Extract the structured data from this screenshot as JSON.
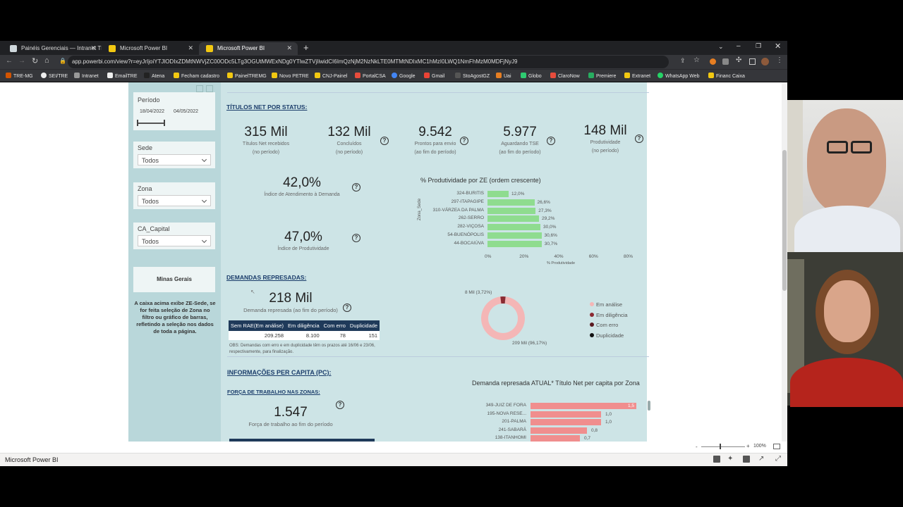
{
  "browser": {
    "tabs": [
      {
        "label": "Painéis Gerenciais — Intranet TRE",
        "active": false
      },
      {
        "label": "Microsoft Power BI",
        "active": false
      },
      {
        "label": "Microsoft Power BI",
        "active": true
      }
    ],
    "url": "app.powerbi.com/view?r=eyJrIjoiYTJlODIxZDMtNWVjZC00ODc5LTg3OGUtMWExNDg0YTlwZTVjIiwidCI6ImQzNjM2NzNkLTE0MTMtNDIxMC1hMzI0LWQ1NmFhMzM0MDFjNyJ9",
    "bookmarks": [
      "TRE-MG",
      "SEI/TRE",
      "Intranet",
      "EmailTRE",
      "Atena",
      "Fecham cadastro",
      "PainelTREMG",
      "Novo PETRE",
      "CNJ-Painel",
      "PortalCSA",
      "Google",
      "Gmail",
      "StoAgostGZ",
      "Uai",
      "Globo",
      "ClaroNow",
      "Premiere",
      "Extranet",
      "WhatsApp Web",
      "Financ Caixa"
    ]
  },
  "sidebar": {
    "periodo": {
      "label": "Período",
      "start": "18/04/2022",
      "end": "04/05/2022"
    },
    "sede": {
      "label": "Sede",
      "value": "Todos"
    },
    "zona": {
      "label": "Zona",
      "value": "Todos"
    },
    "ca_capital": {
      "label": "CA_Capital",
      "value": "Todos"
    },
    "region": "Minas Gerais",
    "note": "A caixa acima exibe ZE-Sede, se for feita seleção de Zona no filtro ou gráfico de barras, refletindo a seleção nos dados de toda a página."
  },
  "titulos": {
    "heading": "TÍTULOS NET POR STATUS:",
    "kpis": [
      {
        "value": "315 Mil",
        "label1": "Títulos Net recebidos",
        "label2": "(no período)"
      },
      {
        "value": "132 Mil",
        "label1": "Concluídos",
        "label2": "(no período)"
      },
      {
        "value": "9.542",
        "label1": "Prontos para envio",
        "label2": "(ao fim do período)"
      },
      {
        "value": "5.977",
        "label1": "Aguardando TSE",
        "label2": "(ao fim do período)"
      },
      {
        "value": "148 Mil",
        "label1": "Produtividade",
        "label2": "(no período)"
      }
    ],
    "atendimento": {
      "value": "42,0%",
      "label": "Índice de Atendimento à Demanda"
    },
    "produtividade": {
      "value": "47,0%",
      "label": "Índice de Produtividade"
    }
  },
  "demandas": {
    "heading": "DEMANDAS REPRESADAS:",
    "value": "218 Mil",
    "label": "Demanda represada (ao fim do período)",
    "table": {
      "headers": [
        "Sem RAE(Em análise)",
        "Em diligência",
        "Com erro",
        "Duplicidade"
      ],
      "row": [
        "209.258",
        "8.100",
        "78",
        "151"
      ]
    },
    "obs1": "OBS: Demandas com erro e em duplicidade têm os prazos até 16/06 e 23/06,",
    "obs2": "respectivamente, para finalização.",
    "donut_top_label": "8 Mil (3,72%)",
    "donut_bottom_label": "209 Mil (96,17%)",
    "legend": [
      {
        "label": "Em análise",
        "color": "#f4b6b6"
      },
      {
        "label": "Em diligência",
        "color": "#8b2a32"
      },
      {
        "label": "Com erro",
        "color": "#5a1a20"
      },
      {
        "label": "Duplicidade",
        "color": "#111111"
      }
    ]
  },
  "percapita": {
    "heading": "INFORMAÇÕES PER CAPITA (PC):",
    "forca_heading": "FORÇA DE TRABALHO NAS ZONAS:",
    "forca_value": "1.547",
    "forca_label": "Força de trabalho ao fim do período"
  },
  "chart_data": [
    {
      "type": "bar",
      "title": "% Produtividade por ZE (ordem crescente)",
      "ylabel": "Zona_Sede",
      "xlabel": "% Produtividade",
      "categories": [
        "324-BURITIS",
        "297-ITAPAGIPE",
        "310-VÁRZEA DA PALMA",
        "262-SERRO",
        "282-VIÇOSA",
        "54-BUENÓPOLIS",
        "44-BOCAIÚVA"
      ],
      "values": [
        12.0,
        26.6,
        27.3,
        29.2,
        30.0,
        30.6,
        30.7
      ],
      "value_labels": [
        "12,0%",
        "26,6%",
        "27,3%",
        "29,2%",
        "30,0%",
        "30,6%",
        "30,7%"
      ],
      "xticks": [
        "0%",
        "20%",
        "40%",
        "60%",
        "80%"
      ],
      "xlim": [
        0,
        80
      ]
    },
    {
      "type": "bar",
      "title": "Demanda represada ATUAL* Título Net per capita por Zona",
      "categories": [
        "349-JUIZ DE FORA",
        "195-NOVA RESE...",
        "201-PALMA",
        "241-SABARÁ",
        "138-ITANHOMI"
      ],
      "values": [
        1.5,
        1.0,
        1.0,
        0.8,
        0.7
      ],
      "value_labels": [
        "1,5",
        "1,0",
        "1,0",
        "0,8",
        "0,7"
      ],
      "xlim": [
        0,
        1.5
      ]
    },
    {
      "type": "pie",
      "title": "Demandas represadas",
      "categories": [
        "Em análise",
        "Em diligência",
        "Com erro",
        "Duplicidade"
      ],
      "values": [
        209258,
        8100,
        78,
        151
      ]
    }
  ],
  "statusbar": {
    "title": "Microsoft Power BI",
    "zoom": "100%"
  }
}
